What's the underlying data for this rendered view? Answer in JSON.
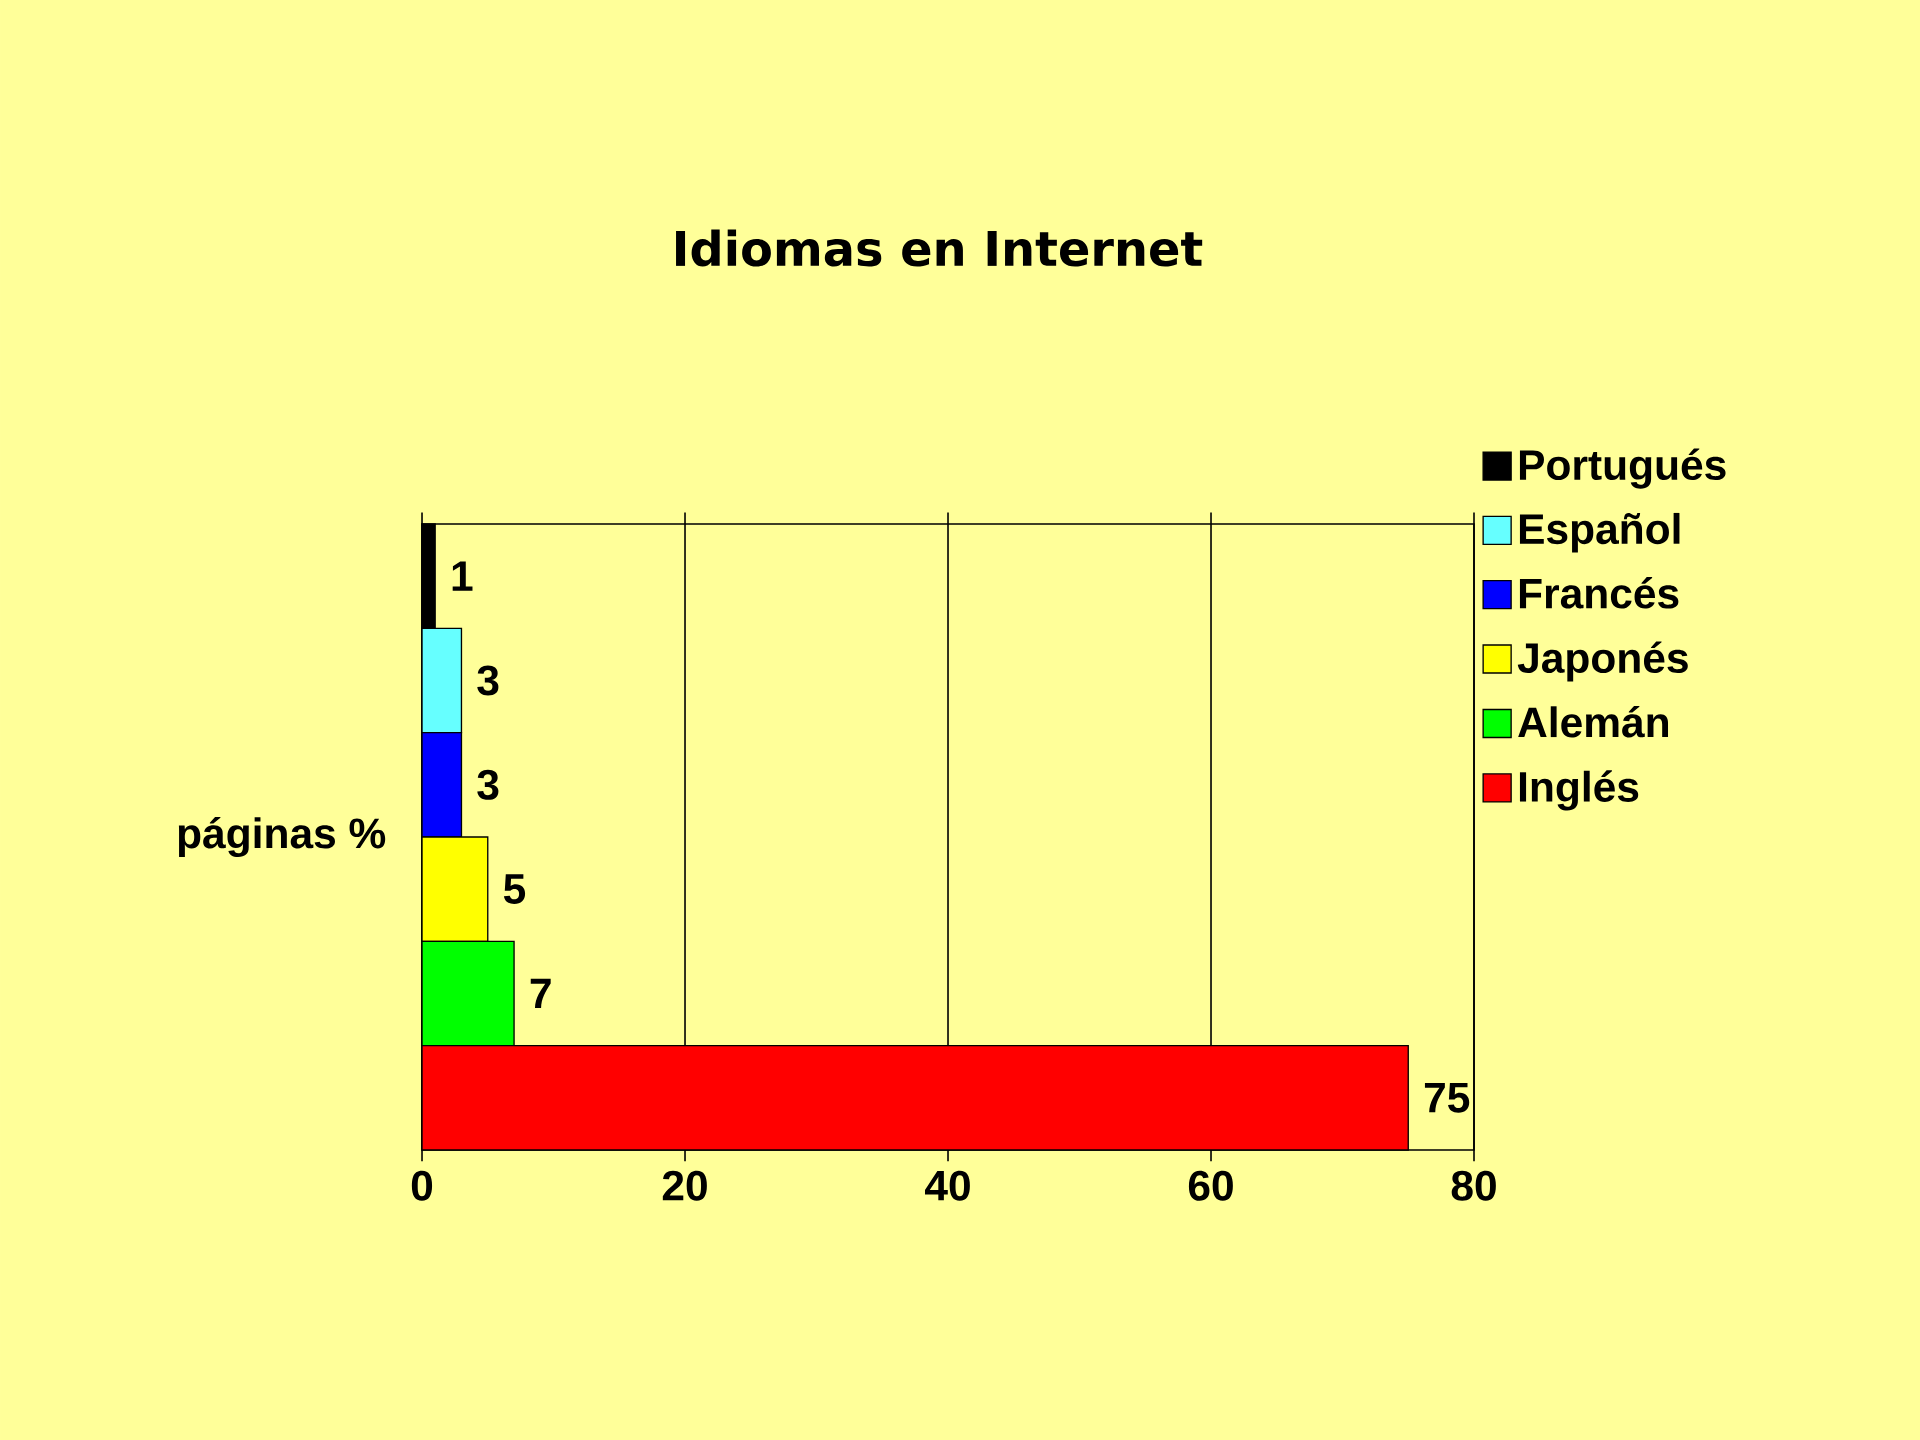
{
  "chart_data": {
    "type": "bar",
    "orientation": "horizontal",
    "title": "Idiomas en Internet",
    "ylabel": "páginas %",
    "categories": [
      null,
      null,
      null,
      null,
      null,
      null
    ],
    "series": [
      {
        "name": "Portugués",
        "color": "#000000",
        "values": [
          1,
          null,
          null,
          null,
          null,
          null
        ]
      },
      {
        "name": "Español",
        "color": "#66ffff",
        "values": [
          null,
          3,
          null,
          null,
          null,
          null
        ]
      },
      {
        "name": "Francés",
        "color": "#0000ff",
        "values": [
          null,
          null,
          3,
          null,
          null,
          null
        ]
      },
      {
        "name": "Japonés",
        "color": "#ffff00",
        "values": [
          null,
          null,
          null,
          5,
          null,
          null
        ]
      },
      {
        "name": "Alemán",
        "color": "#00ff00",
        "values": [
          null,
          null,
          null,
          null,
          7,
          null
        ]
      },
      {
        "name": "Inglés",
        "color": "#ff0000",
        "values": [
          null,
          null,
          null,
          null,
          null,
          75
        ]
      }
    ],
    "xlim": [
      0,
      80
    ],
    "xticks": [
      0,
      20,
      40,
      60,
      80
    ],
    "grid": "x",
    "legend": "top right",
    "data_labels": true
  }
}
